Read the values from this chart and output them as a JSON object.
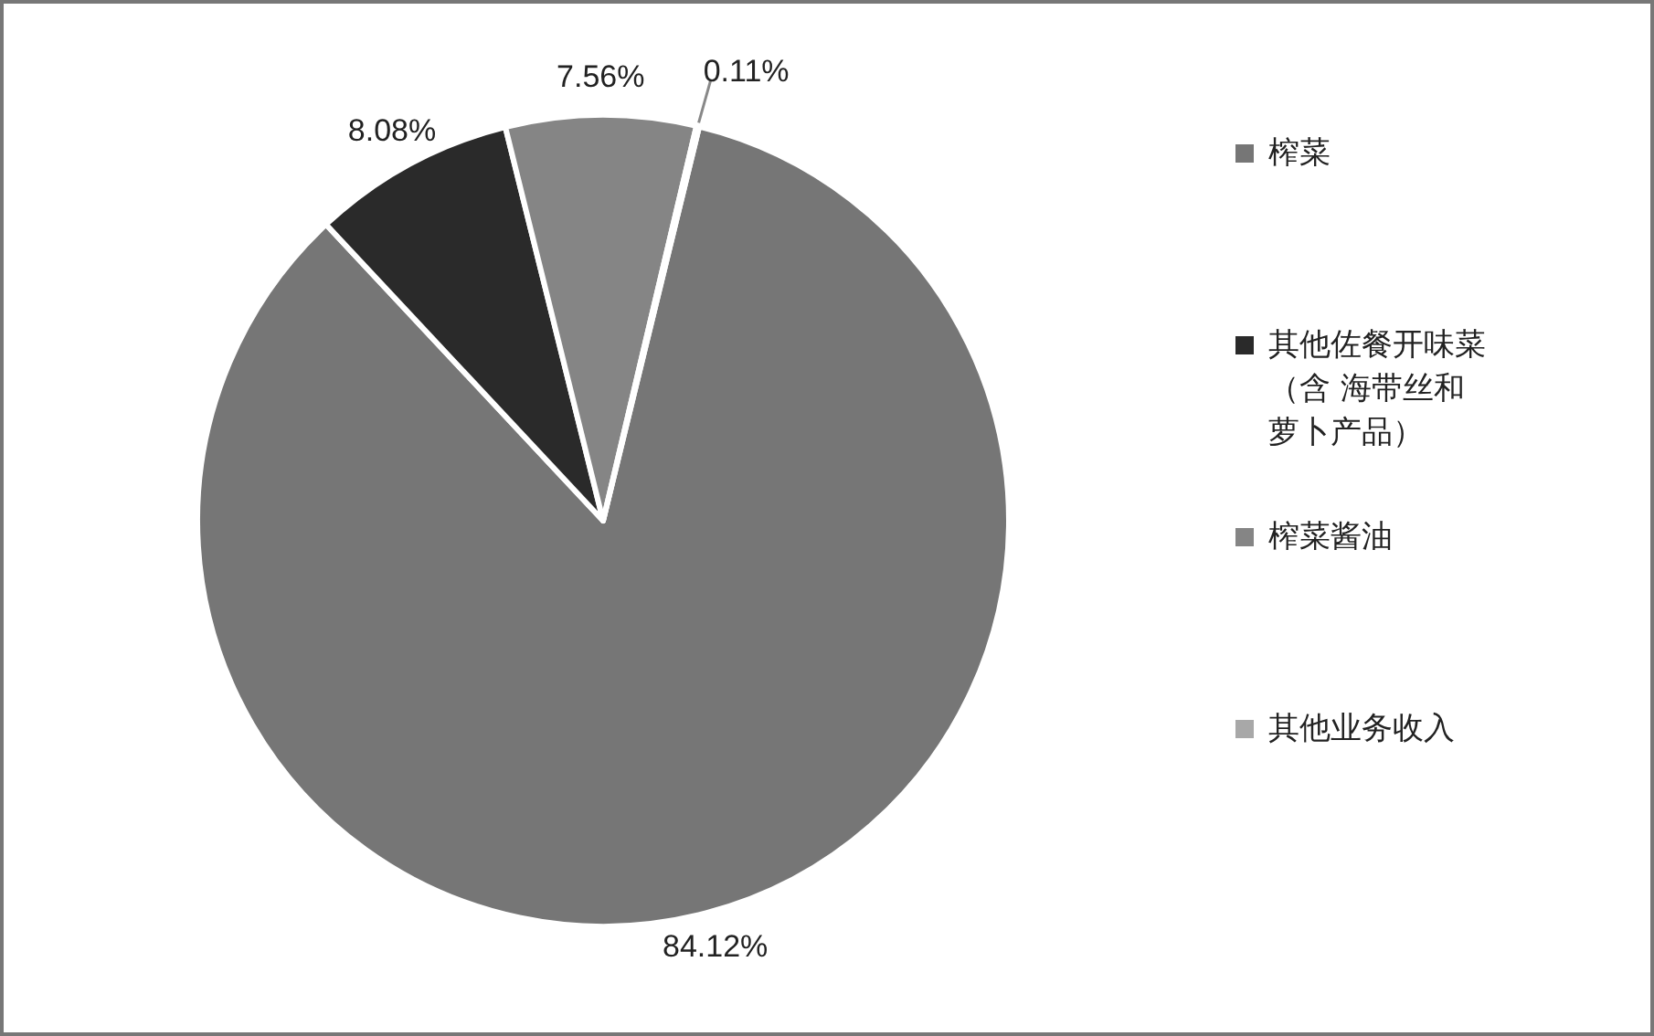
{
  "chart_data": {
    "type": "pie",
    "categories": [
      "榨菜",
      "其他佐餐开味菜（含 海带丝和萝卜产品）",
      "榨菜酱油",
      "其他业务收入"
    ],
    "values": [
      84.12,
      8.08,
      7.56,
      0.11
    ],
    "colors": [
      "#767676",
      "#2a2a2a",
      "#858585",
      "#a8a8a8"
    ],
    "value_labels": [
      "84.12%",
      "8.08%",
      "7.56%",
      "0.11%"
    ],
    "legend": "right"
  }
}
